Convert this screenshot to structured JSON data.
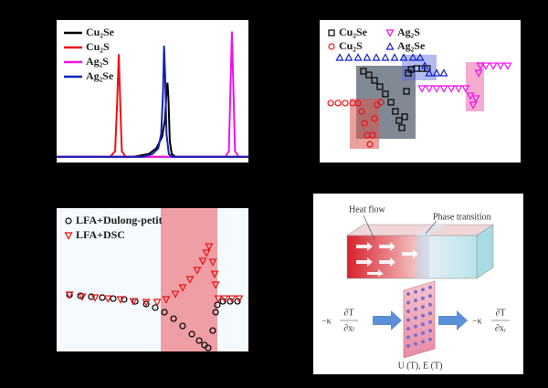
{
  "chart_data": [
    {
      "type": "line",
      "xlim": [
        0,
        100
      ],
      "ylim": [
        0,
        100
      ],
      "legend": "upper left",
      "series": [
        {
          "name": "Cu₂Se",
          "color": "#000000",
          "x": [
            0,
            40,
            48,
            52,
            55,
            56.5,
            57.3,
            57.8,
            58.3,
            59,
            60,
            62,
            100
          ],
          "values": [
            4,
            4,
            6,
            10,
            18,
            30,
            50,
            56,
            45,
            15,
            6,
            4,
            4
          ]
        },
        {
          "name": "Cu₂S",
          "color": "#ee1111",
          "x": [
            0,
            28,
            30.5,
            31.5,
            32.4,
            33.2,
            34,
            36,
            100
          ],
          "values": [
            4,
            4,
            8,
            40,
            76,
            40,
            8,
            4,
            4
          ]
        },
        {
          "name": "Ag₂S",
          "color": "#ee11ee",
          "x": [
            0,
            88,
            89.8,
            90.6,
            91.4,
            92.2,
            93,
            95,
            100
          ],
          "values": [
            4,
            4,
            8,
            50,
            92,
            50,
            8,
            4,
            4
          ]
        },
        {
          "name": "Ag₂Se",
          "color": "#1122bb",
          "x": [
            0,
            45,
            50,
            53,
            54.5,
            55.5,
            56,
            56.6,
            57.3,
            58.5,
            60,
            100
          ],
          "values": [
            4,
            4,
            6,
            10,
            20,
            50,
            82,
            60,
            20,
            6,
            4,
            4
          ]
        }
      ]
    },
    {
      "type": "scatter",
      "xlim": [
        0,
        100
      ],
      "ylim": [
        0,
        100
      ],
      "legend": "upper left",
      "series": [
        {
          "name": "Cu₂Se",
          "color": "#000000",
          "marker": "square",
          "x": [
            21.8,
            24.5,
            27.3,
            30,
            32.7,
            35.5,
            37.7,
            39.5,
            40.9,
            42.3,
            43.2,
            44.1,
            45.5,
            48.2,
            50.9,
            53.6
          ],
          "values": [
            64.1,
            61.5,
            57.7,
            53.2,
            48.1,
            42.3,
            35.9,
            29.5,
            24.4,
            32.1,
            50,
            62.8,
            65.4,
            66,
            66,
            66
          ]
        },
        {
          "name": "Ag₂S",
          "color": "#ee11ee",
          "marker": "triangle-down",
          "x": [
            50.9,
            54.5,
            58.2,
            61.8,
            65.5,
            69.1,
            72.7,
            75,
            76.4,
            77.7,
            79.1,
            80,
            82.7,
            86.4,
            90,
            93.6
          ],
          "values": [
            51.9,
            51.9,
            51.9,
            51.9,
            51.9,
            51.9,
            51.9,
            46.8,
            40.4,
            44.9,
            62.8,
            67.9,
            67.9,
            67.9,
            67.9,
            67.9
          ]
        },
        {
          "name": "Cu₂S",
          "color": "#ee1111",
          "marker": "circle",
          "x": [
            5.5,
            9.1,
            12.7,
            16.4,
            19.1,
            20.9,
            22.3,
            23.6,
            25,
            26.4,
            27.3,
            28.6,
            30.5
          ],
          "values": [
            41.7,
            41.7,
            41.7,
            41.7,
            41.7,
            35.9,
            27.6,
            19.2,
            12.8,
            19.2,
            30.8,
            40.4,
            42.3
          ]
        },
        {
          "name": "Ag₂Se",
          "color": "#1122cc",
          "marker": "triangle-up",
          "x": [
            10,
            14.5,
            19.1,
            23.6,
            28.2,
            32.7,
            37.3,
            41.8,
            46.4,
            50,
            52.3,
            54.5,
            58.2,
            61.8
          ],
          "values": [
            73.7,
            73.7,
            73.7,
            73.7,
            73.7,
            73.7,
            73.7,
            73.7,
            73.7,
            73.7,
            67.9,
            62.8,
            62.8,
            62.8
          ]
        }
      ]
    },
    {
      "type": "scatter",
      "xlim": [
        0,
        100
      ],
      "ylim": [
        0,
        100
      ],
      "legend": "upper left",
      "series": [
        {
          "name": "LFA+Dulong-petit",
          "color": "#000000",
          "marker": "circle",
          "x": [
            6.7,
            12.4,
            18.1,
            23.8,
            29.5,
            35.2,
            41,
            46.7,
            51.4,
            56.2,
            61,
            65.7,
            70.5,
            74.3,
            77.1,
            79,
            81.4,
            82.9,
            83.8,
            86.7,
            90.5,
            94.3
          ],
          "values": [
            39.5,
            38.9,
            38.2,
            37.6,
            36.9,
            36.3,
            35,
            33.1,
            30.6,
            27.4,
            22.9,
            17.8,
            12.1,
            7.6,
            4.5,
            2.5,
            14.6,
            27.4,
            32.5,
            35,
            35,
            35
          ]
        },
        {
          "name": "LFA+DSC",
          "color": "#ee1111",
          "marker": "triangle-down",
          "x": [
            6.7,
            13.3,
            20,
            26.7,
            33.3,
            40,
            46.7,
            52.4,
            57.1,
            61.9,
            65.7,
            69.5,
            73.3,
            76.2,
            78.1,
            79.5,
            81.4,
            82.4,
            82.9,
            84.3,
            87.6,
            91.4,
            95.2
          ],
          "values": [
            39.5,
            38.2,
            37.6,
            36.9,
            36.3,
            35,
            34.4,
            34.4,
            36.3,
            40.1,
            44.6,
            50.3,
            56.7,
            63.1,
            68.8,
            73.2,
            62.4,
            54.1,
            46.5,
            36.9,
            36.9,
            36.9,
            36.9
          ]
        }
      ]
    }
  ],
  "diagram": {
    "heat_flow": "Heat flow",
    "phase_transition": "Phase transition",
    "left_flux": {
      "coef": "−κ",
      "num": "∂T",
      "den": "∂xₗ"
    },
    "right_flux": {
      "coef": "−κ",
      "num": "∂T",
      "den": "∂xᵣ"
    },
    "plate_label": "U (T), E (T)"
  }
}
